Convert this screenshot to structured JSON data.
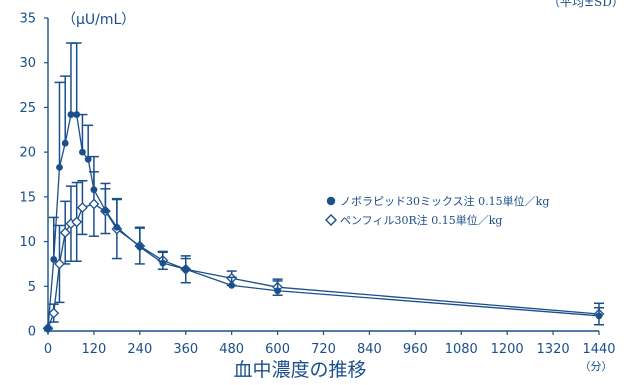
{
  "colors": {
    "ink": "#1b4f8c",
    "marker_fill": "#1b4f8c",
    "open_fill": "#ffffff"
  },
  "chart_data": {
    "type": "line",
    "title": "血中濃度の推移",
    "corner_note": "（平均±SD）",
    "ylabel": "（μU/mL）",
    "x_unit": "（分）",
    "xlim": [
      0,
      1440
    ],
    "ylim": [
      0,
      35
    ],
    "x_ticks": [
      0,
      120,
      240,
      360,
      480,
      600,
      720,
      840,
      960,
      1080,
      1200,
      1320,
      1440
    ],
    "y_ticks": [
      0,
      5,
      10,
      15,
      20,
      25,
      30,
      35
    ],
    "grid": false,
    "legend_position": "center-right",
    "series": [
      {
        "name": "ノボラピッド30ミックス注 0.15単位／kg",
        "marker": "filled-circle",
        "x": [
          0,
          15,
          30,
          45,
          60,
          75,
          90,
          105,
          120,
          150,
          180,
          240,
          300,
          360,
          480,
          600,
          1440
        ],
        "y": [
          0.3,
          8,
          18.3,
          21,
          24.2,
          24.2,
          20,
          19.2,
          15.8,
          13.5,
          11.6,
          9.4,
          7.6,
          6.9,
          5.1,
          4.5,
          1.7
        ],
        "err": [
          0,
          4.7,
          9.5,
          7.5,
          8,
          8,
          4.2,
          3.8,
          3.7,
          3,
          3.2,
          2.2,
          1.2,
          1.2,
          0.9,
          1.1,
          0.9
        ]
      },
      {
        "name": "ペンフィル30R注 0.15単位／kg",
        "marker": "open-diamond",
        "x": [
          0,
          15,
          30,
          45,
          60,
          75,
          90,
          120,
          150,
          180,
          240,
          300,
          360,
          480,
          600,
          1440
        ],
        "y": [
          0.3,
          2,
          7.5,
          11,
          12,
          12.2,
          13.8,
          14.2,
          13.4,
          11.4,
          9.5,
          7.9,
          6.9,
          5.9,
          4.9,
          1.9
        ],
        "err": [
          0,
          1,
          4.3,
          3.5,
          4.2,
          4.4,
          3,
          3.6,
          2.5,
          3.3,
          2,
          1,
          1.5,
          0.8,
          0.9,
          1.2
        ]
      }
    ]
  }
}
